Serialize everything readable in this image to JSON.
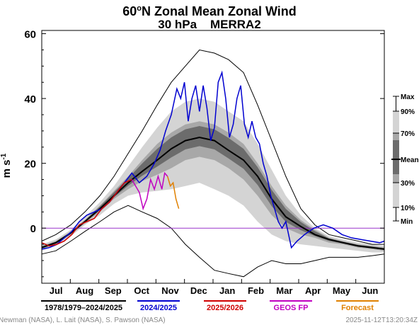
{
  "chart_data": {
    "type": "line",
    "title_line1": "60",
    "title_sup": "o",
    "title_line1b": "N Zonal Mean Zonal Wind",
    "title_line2": "30 hPa    MERRA2",
    "ylabel_main": "m s",
    "ylabel_sup": "-1",
    "ylim": [
      -17,
      61
    ],
    "yticks": [
      0,
      20,
      40,
      60
    ],
    "x_months": [
      "Jul",
      "Aug",
      "Sep",
      "Oct",
      "Nov",
      "Dec",
      "Jan",
      "Feb",
      "Mar",
      "Apr",
      "May",
      "Jun"
    ],
    "x_days_range": [
      0,
      365
    ],
    "zero_line": 0,
    "percentile_legend": {
      "labels": [
        "Max",
        "90%",
        "70%",
        "Mean",
        "30%",
        "10%",
        "Min"
      ],
      "colors": {
        "outer": "#d4d4d4",
        "mid": "#a8a8a8",
        "inner": "#6c6c6c"
      }
    },
    "legend": [
      {
        "label": "1978/1979–2024/2025",
        "color": "#000000"
      },
      {
        "label": "2024/2025",
        "color": "#0000d0"
      },
      {
        "label": "2025/2026",
        "color": "#d00000"
      },
      {
        "label": "GEOS FP",
        "color": "#c000c0"
      },
      {
        "label": "Forecast",
        "color": "#e08000"
      }
    ],
    "credit": "Newman (NASA), L. Lait (NASA), S. Pawson (NASA)",
    "timestamp": "2025-11-12T13:20:34Z",
    "climatology": {
      "x": [
        0,
        15,
        31,
        46,
        62,
        77,
        92,
        107,
        123,
        138,
        153,
        168,
        184,
        199,
        215,
        230,
        245,
        260,
        276,
        291,
        306,
        321,
        337,
        352,
        365
      ],
      "max": [
        -4,
        -2,
        1,
        5,
        10,
        16,
        23,
        30,
        38,
        45,
        50,
        55,
        54,
        52,
        48,
        38,
        27,
        16,
        6,
        1,
        -2,
        -3,
        -4,
        -5,
        -5
      ],
      "p90": [
        -5,
        -3.5,
        -0.5,
        3.5,
        8,
        13,
        19,
        25,
        31,
        36,
        39,
        40,
        39,
        36,
        33,
        26,
        18,
        10,
        4,
        0,
        -2.5,
        -3.5,
        -4.5,
        -5,
        -5.5
      ],
      "p70": [
        -5.5,
        -4,
        -1,
        2.5,
        7,
        11.5,
        16,
        21,
        26,
        29.5,
        32,
        33,
        32,
        29.5,
        26,
        20,
        13,
        7,
        2.5,
        -0.5,
        -3,
        -4,
        -5,
        -5.5,
        -6
      ],
      "mean": [
        -6,
        -4.5,
        -1.5,
        2,
        6,
        10,
        14,
        17.5,
        21,
        24.5,
        27,
        28,
        27,
        24,
        21,
        16,
        9,
        3.5,
        0.5,
        -2,
        -3.5,
        -4.5,
        -5.5,
        -6,
        -6.5
      ],
      "p30": [
        -6.5,
        -5,
        -2,
        1.5,
        5,
        9,
        12,
        14.5,
        16.5,
        18.5,
        21,
        22,
        21,
        18.5,
        15,
        10,
        4,
        0,
        -2,
        -3,
        -4.5,
        -5,
        -6,
        -6.5,
        -7
      ],
      "p10": [
        -7,
        -5.5,
        -2.5,
        1,
        4,
        7.5,
        10,
        11,
        11.5,
        12,
        13,
        14,
        12,
        10,
        7,
        2,
        -2,
        -4,
        -5,
        -5.5,
        -6,
        -6.5,
        -7,
        -7.5,
        -7.5
      ],
      "min": [
        -8,
        -7,
        -4,
        -1,
        2,
        5,
        7,
        5,
        3,
        0,
        -5,
        -9,
        -13,
        -14,
        -15,
        -12,
        -10,
        -11,
        -11,
        -10,
        -9,
        -9,
        -9,
        -8.5,
        -8
      ]
    },
    "series_2024_2025": {
      "x": [
        0,
        8,
        16,
        24,
        32,
        40,
        48,
        56,
        64,
        72,
        80,
        88,
        96,
        104,
        112,
        120,
        126,
        132,
        138,
        144,
        148,
        152,
        156,
        160,
        164,
        168,
        172,
        176,
        180,
        184,
        188,
        192,
        196,
        200,
        204,
        208,
        212,
        216,
        220,
        224,
        228,
        232,
        236,
        240,
        244,
        248,
        252,
        256,
        260,
        266,
        272,
        280,
        290,
        300,
        310,
        320,
        330,
        340,
        350,
        360,
        365
      ],
      "y": [
        -6.5,
        -6,
        -5,
        -3,
        -1,
        2,
        4,
        5,
        6,
        8,
        11,
        14,
        17,
        14,
        16,
        20,
        24,
        30,
        35,
        43,
        40,
        45,
        33,
        40,
        44,
        36,
        44,
        37,
        27,
        31,
        45,
        48,
        40,
        28,
        32,
        40,
        44,
        32,
        28,
        33,
        28,
        26,
        20,
        16,
        10,
        6,
        2,
        0,
        2,
        -6,
        -4,
        -2,
        0,
        1,
        0,
        -2,
        -3,
        -3.5,
        -4,
        -4.5,
        -4
      ]
    },
    "series_2025_2026": {
      "x": [
        0,
        8,
        16,
        24,
        32,
        40,
        48,
        56,
        64,
        72,
        80,
        88,
        96
      ],
      "y": [
        -4.5,
        -5.5,
        -5,
        -4,
        -2,
        1,
        2,
        3,
        6,
        8,
        11,
        14,
        15
      ]
    },
    "series_geos_fp": {
      "x": [
        96,
        100,
        104,
        108,
        112,
        116,
        120,
        124,
        128,
        131,
        134
      ],
      "y": [
        15,
        13,
        11,
        6,
        9,
        15,
        12,
        16,
        12,
        17,
        16
      ]
    },
    "series_forecast": {
      "x": [
        134,
        137,
        140,
        143,
        146
      ],
      "y": [
        16,
        13,
        14,
        9,
        6
      ]
    }
  }
}
